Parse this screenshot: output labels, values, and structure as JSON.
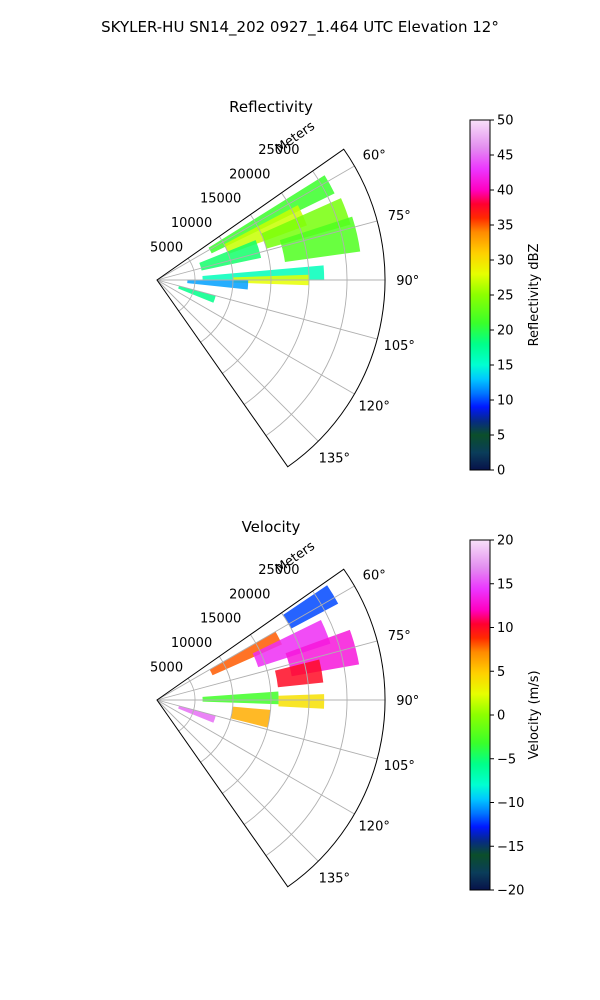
{
  "figure": {
    "suptitle": "SKYLER-HU  SN14_202  0927_1.464 UTC Elevation 12°"
  },
  "chart_data": [
    {
      "type": "heatmap",
      "projection": "polar-sector",
      "title": "Reflectivity",
      "radial_label": "Meters",
      "radial_ticks": [
        5000,
        10000,
        15000,
        20000,
        25000
      ],
      "radial_tick_labels": [
        "5000",
        "10000",
        "15000",
        "20000",
        "25000"
      ],
      "radial_max": 30000,
      "angle_range_deg": [
        55,
        145
      ],
      "angle_ticks_deg": [
        60,
        75,
        90,
        105,
        120,
        135
      ],
      "angle_tick_labels": [
        "60°",
        "75°",
        "90°",
        "105°",
        "120°",
        "135°"
      ],
      "grid": true,
      "colorbar": {
        "label": "Reflectivity dBZ",
        "min": 0,
        "max": 50,
        "ticks": [
          0,
          5,
          10,
          15,
          20,
          25,
          30,
          35,
          40,
          45,
          50
        ],
        "tick_labels": [
          "0",
          "5",
          "10",
          "15",
          "20",
          "25",
          "30",
          "35",
          "40",
          "45",
          "50"
        ],
        "stops": [
          [
            0,
            "#08124a"
          ],
          [
            0.05,
            "#0a3d5a"
          ],
          [
            0.1,
            "#0b4f2a"
          ],
          [
            0.14,
            "#062a86"
          ],
          [
            0.18,
            "#0018ff"
          ],
          [
            0.22,
            "#0078ff"
          ],
          [
            0.26,
            "#00c8ff"
          ],
          [
            0.3,
            "#00ffd2"
          ],
          [
            0.36,
            "#00ff8a"
          ],
          [
            0.42,
            "#3aff2a"
          ],
          [
            0.5,
            "#8cff00"
          ],
          [
            0.56,
            "#e6ff00"
          ],
          [
            0.62,
            "#ffd000"
          ],
          [
            0.68,
            "#ff8a00"
          ],
          [
            0.72,
            "#ff2a00"
          ],
          [
            0.76,
            "#ff0030"
          ],
          [
            0.8,
            "#ff00c0"
          ],
          [
            0.86,
            "#ec36ff"
          ],
          [
            0.92,
            "#e38cf0"
          ],
          [
            1.0,
            "#f8e0f8"
          ]
        ]
      },
      "echo_regions": [
        {
          "az": [
            58,
            64
          ],
          "r": [
            8000,
            26000
          ],
          "value": 21
        },
        {
          "az": [
            62,
            70
          ],
          "r": [
            10000,
            21000
          ],
          "value": 27
        },
        {
          "az": [
            66,
            74
          ],
          "r": [
            15000,
            26500
          ],
          "value": 24
        },
        {
          "az": [
            68,
            78
          ],
          "r": [
            6000,
            14000
          ],
          "value": 19
        },
        {
          "az": [
            72,
            82
          ],
          "r": [
            17000,
            27000
          ],
          "value": 22
        },
        {
          "az": [
            85,
            90
          ],
          "r": [
            6000,
            22000
          ],
          "value": 16
        },
        {
          "az": [
            88,
            92
          ],
          "r": [
            10000,
            20000
          ],
          "value": 28
        },
        {
          "az": [
            90,
            96
          ],
          "r": [
            4000,
            12000
          ],
          "value": 12
        },
        {
          "az": [
            105,
            112
          ],
          "r": [
            3000,
            8000
          ],
          "value": 18
        }
      ]
    },
    {
      "type": "heatmap",
      "projection": "polar-sector",
      "title": "Velocity",
      "radial_label": "Meters",
      "radial_ticks": [
        5000,
        10000,
        15000,
        20000,
        25000
      ],
      "radial_tick_labels": [
        "5000",
        "10000",
        "15000",
        "20000",
        "25000"
      ],
      "radial_max": 30000,
      "angle_range_deg": [
        55,
        145
      ],
      "angle_ticks_deg": [
        60,
        75,
        90,
        105,
        120,
        135
      ],
      "angle_tick_labels": [
        "60°",
        "75°",
        "90°",
        "105°",
        "120°",
        "135°"
      ],
      "grid": true,
      "colorbar": {
        "label": "Velocity (m/s)",
        "min": -20,
        "max": 20,
        "ticks": [
          -20,
          -15,
          -10,
          -5,
          0,
          5,
          10,
          15,
          20
        ],
        "tick_labels": [
          "−20",
          "−15",
          "−10",
          "−5",
          "0",
          "5",
          "10",
          "15",
          "20"
        ],
        "stops": [
          [
            0,
            "#08124a"
          ],
          [
            0.05,
            "#0a3d5a"
          ],
          [
            0.1,
            "#0b4f2a"
          ],
          [
            0.14,
            "#062a86"
          ],
          [
            0.18,
            "#0018ff"
          ],
          [
            0.22,
            "#0078ff"
          ],
          [
            0.26,
            "#00c8ff"
          ],
          [
            0.3,
            "#00ffd2"
          ],
          [
            0.36,
            "#00ff8a"
          ],
          [
            0.42,
            "#3aff2a"
          ],
          [
            0.5,
            "#8cff00"
          ],
          [
            0.56,
            "#e6ff00"
          ],
          [
            0.62,
            "#ffd000"
          ],
          [
            0.68,
            "#ff8a00"
          ],
          [
            0.72,
            "#ff2a00"
          ],
          [
            0.76,
            "#ff0030"
          ],
          [
            0.8,
            "#ff00c0"
          ],
          [
            0.86,
            "#ec36ff"
          ],
          [
            0.92,
            "#e38cf0"
          ],
          [
            1.0,
            "#f8e0f8"
          ]
        ]
      },
      "echo_regions": [
        {
          "az": [
            56,
            62
          ],
          "r": [
            20000,
            27000
          ],
          "value": -12
        },
        {
          "az": [
            60,
            66
          ],
          "r": [
            8000,
            18000
          ],
          "value": 8
        },
        {
          "az": [
            64,
            72
          ],
          "r": [
            14000,
            24000
          ],
          "value": 14
        },
        {
          "az": [
            70,
            80
          ],
          "r": [
            18000,
            27000
          ],
          "value": 13
        },
        {
          "az": [
            76,
            84
          ],
          "r": [
            16000,
            22000
          ],
          "value": 10
        },
        {
          "az": [
            86,
            92
          ],
          "r": [
            6000,
            16000
          ],
          "value": -3
        },
        {
          "az": [
            88,
            93
          ],
          "r": [
            16000,
            22000
          ],
          "value": 4
        },
        {
          "az": [
            95,
            104
          ],
          "r": [
            10000,
            15000
          ],
          "value": 6
        },
        {
          "az": [
            105,
            112
          ],
          "r": [
            3000,
            8000
          ],
          "value": 16
        }
      ]
    }
  ]
}
